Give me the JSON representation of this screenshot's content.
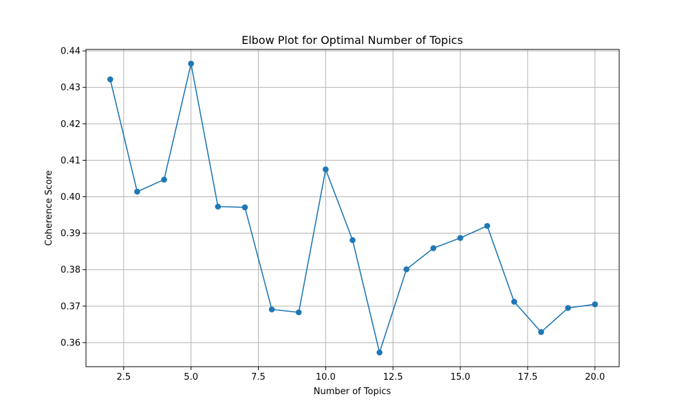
{
  "chart_data": {
    "type": "line",
    "title": "Elbow Plot for Optimal Number of Topics",
    "xlabel": "Number of Topics",
    "ylabel": "Coherence Score",
    "x": [
      2,
      3,
      4,
      5,
      6,
      7,
      8,
      9,
      10,
      11,
      12,
      13,
      14,
      15,
      16,
      17,
      18,
      19,
      20
    ],
    "series": [
      {
        "values": [
          0.4322,
          0.4014,
          0.4047,
          0.4365,
          0.3973,
          0.3971,
          0.3691,
          0.3683,
          0.4075,
          0.3881,
          0.3573,
          0.3801,
          0.3859,
          0.3887,
          0.392,
          0.3712,
          0.3629,
          0.3695,
          0.3705
        ],
        "color": "#1f77b4",
        "marker": "circle"
      }
    ],
    "xlim": [
      1.1,
      20.9
    ],
    "ylim": [
      0.3534,
      0.4404
    ],
    "xticks": [
      "2.5",
      "5.0",
      "7.5",
      "10.0",
      "12.5",
      "15.0",
      "17.5",
      "20.0"
    ],
    "yticks": [
      "0.36",
      "0.37",
      "0.38",
      "0.39",
      "0.40",
      "0.41",
      "0.42",
      "0.43",
      "0.44"
    ],
    "grid": true,
    "grid_color": "#b0b0b0"
  }
}
